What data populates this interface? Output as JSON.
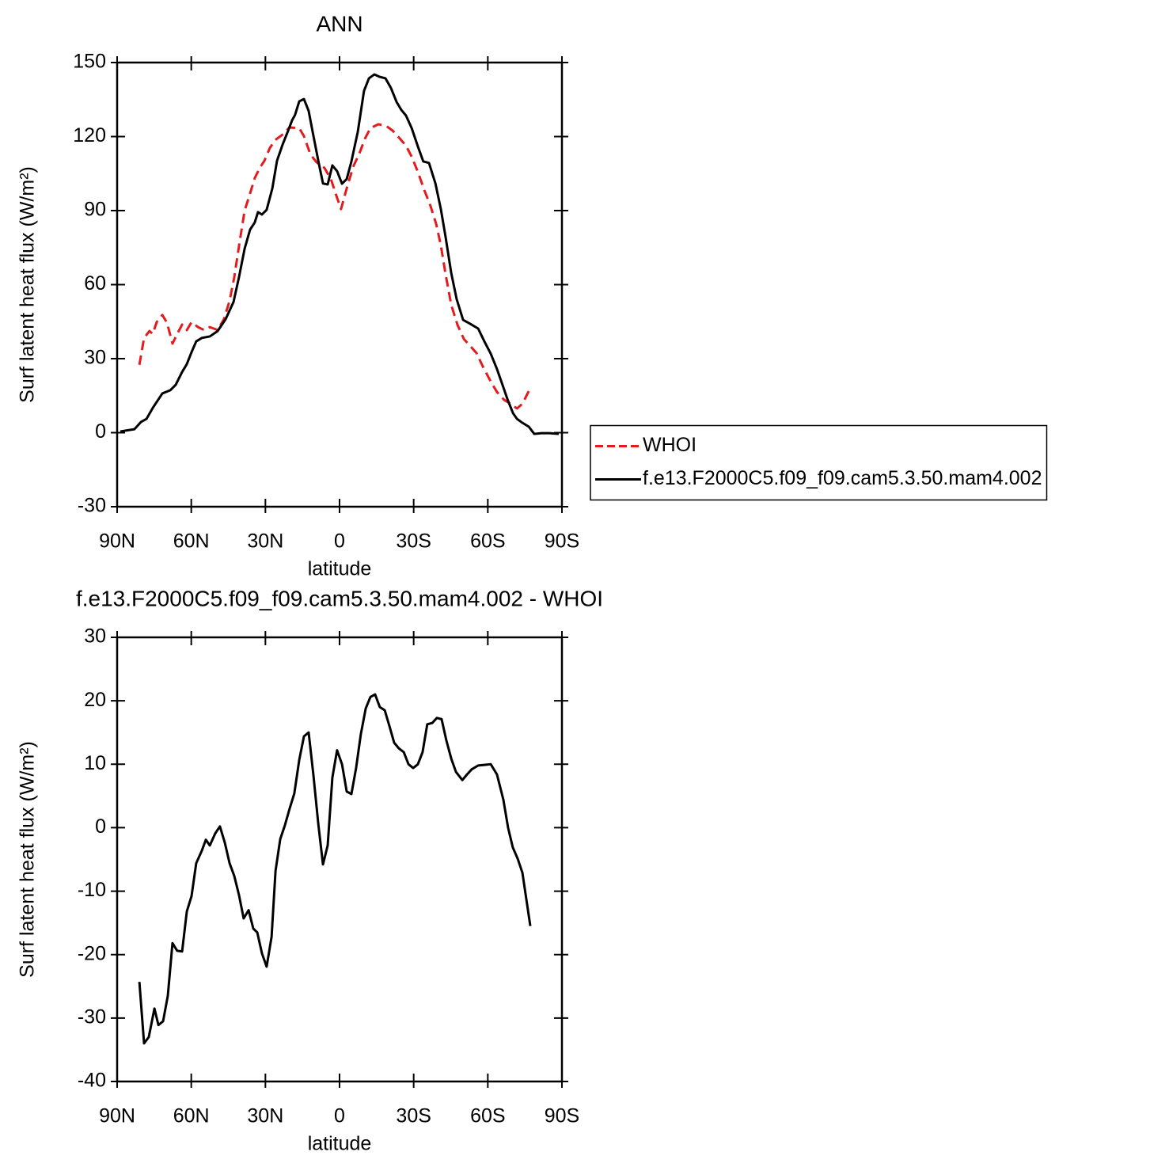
{
  "chart_data": [
    {
      "type": "line",
      "title": "ANN",
      "xlabel": "latitude",
      "ylabel": "Surf latent heat flux (W/m²)",
      "xlim": [
        90,
        -90
      ],
      "xticks": [
        {
          "value": 90,
          "label": "90N"
        },
        {
          "value": 60,
          "label": "60N"
        },
        {
          "value": 30,
          "label": "30N"
        },
        0,
        {
          "value": -30,
          "label": "30S"
        },
        {
          "value": -60,
          "label": "60S"
        },
        {
          "value": -90,
          "label": "90S"
        }
      ],
      "ylim": [
        -30,
        150
      ],
      "yticks": [
        -30,
        0,
        30,
        60,
        90,
        120,
        150
      ],
      "legend": "right",
      "series": [
        {
          "name": "WHOI",
          "color": "#e41a1c",
          "dash": true,
          "x": [
            81,
            79.1,
            76.9,
            75.6,
            74,
            71.7,
            69.8,
            67.6,
            65.7,
            63.7,
            61.8,
            59.9,
            57.3,
            54.8,
            52.5,
            49.3,
            46.8,
            44.5,
            42.6,
            40.4,
            38.4,
            36.2,
            34.3,
            32.3,
            30.4,
            28.2,
            26,
            23.1,
            20.2,
            16.3,
            14.4,
            11.8,
            9.3,
            6.1,
            3.5,
            1.3,
            -0.6,
            -2.9,
            -5.5,
            -8,
            -10.3,
            -12.5,
            -15.7,
            -18.9,
            -21.5,
            -24.4,
            -26.9,
            -29.2,
            -31.7,
            -34.3,
            -36.8,
            -39.1,
            -41,
            -42.9,
            -45.2,
            -47.7,
            -50.3,
            -52.9,
            -55.4,
            -58,
            -61.2,
            -63.7,
            -66.6,
            -69.2,
            -71.8,
            -74,
            -77.2
          ],
          "values": [
            27.5,
            38.4,
            41.2,
            40,
            44.8,
            47.7,
            44.5,
            36.1,
            40,
            43.8,
            41.6,
            44.8,
            42.8,
            41.6,
            42.8,
            41.6,
            46,
            53.4,
            63,
            77.5,
            90,
            97,
            103.2,
            107.3,
            110.2,
            115.4,
            118.6,
            120.8,
            123.7,
            123.4,
            120.2,
            112.8,
            109.6,
            107.3,
            102.8,
            96.1,
            90.6,
            99,
            107.7,
            113.1,
            119.2,
            123.4,
            125,
            124.3,
            122.4,
            119.2,
            116.3,
            111.8,
            105.7,
            98.3,
            91.9,
            84.6,
            75.9,
            64.3,
            51.8,
            43.8,
            38,
            35.1,
            32.3,
            26.8,
            20.7,
            16.5,
            13.3,
            11.7,
            9.8,
            11.7,
            18.1
          ]
        },
        {
          "name": "f.e13.F2000C5.f09_f09.cam5.3.50.mam4.002",
          "color": "#000000",
          "dash": false,
          "x": [
            88.7,
            83,
            80.4,
            78.1,
            75.6,
            71.7,
            68.5,
            66.3,
            63.7,
            61.8,
            59.9,
            58,
            55.7,
            52.5,
            49.3,
            46.1,
            42.9,
            40.7,
            38.4,
            36.2,
            34.3,
            33,
            31.4,
            29.5,
            27.2,
            25.3,
            23.1,
            20.8,
            19.2,
            18,
            16.3,
            14.4,
            12.5,
            10.9,
            8.6,
            6.7,
            4.8,
            2.9,
            1,
            -1,
            -2.9,
            -4.8,
            -7.4,
            -9.9,
            -11.9,
            -14.1,
            -16.3,
            -18.6,
            -20.8,
            -23.1,
            -25,
            -26.9,
            -29.2,
            -31.7,
            -33.9,
            -36.2,
            -38.8,
            -41,
            -42.9,
            -45.2,
            -47.4,
            -50,
            -52.9,
            -56.1,
            -58.6,
            -61.2,
            -63.7,
            -65.7,
            -67.9,
            -70.2,
            -71.8,
            -74,
            -76.6,
            -78.8,
            -81.7,
            -84.9,
            -88.7
          ],
          "values": [
            0.5,
            1.4,
            4.3,
            5.6,
            10,
            15.9,
            17.2,
            19.4,
            24.6,
            27.8,
            32.6,
            37,
            38.4,
            39,
            41.2,
            46,
            53,
            63,
            74.6,
            82.3,
            85.2,
            89.4,
            88.4,
            90.3,
            99,
            110.2,
            116.6,
            122.4,
            126.6,
            128.8,
            134.3,
            135.2,
            130.4,
            122,
            110.2,
            101,
            100.6,
            108.3,
            106,
            100.9,
            102.8,
            109.9,
            122,
            138.5,
            143.6,
            145.2,
            144.2,
            143.6,
            139.7,
            134,
            130.8,
            128.5,
            123.4,
            116,
            109.9,
            109.3,
            101,
            90.6,
            79.4,
            64.7,
            54.1,
            45.7,
            44.1,
            42.2,
            37,
            32,
            25.8,
            20.1,
            13.7,
            7.9,
            5.6,
            4,
            2.4,
            -0.5,
            -0.2,
            -0.2,
            -0.5
          ]
        }
      ]
    },
    {
      "type": "line",
      "title": "f.e13.F2000C5.f09_f09.cam5.3.50.mam4.002 - WHOI",
      "xlabel": "latitude",
      "ylabel": "Surf latent heat flux (W/m²)",
      "xlim": [
        90,
        -90
      ],
      "xticks": [
        {
          "value": 90,
          "label": "90N"
        },
        {
          "value": 60,
          "label": "60N"
        },
        {
          "value": 30,
          "label": "30N"
        },
        0,
        {
          "value": -30,
          "label": "30S"
        },
        {
          "value": -60,
          "label": "60S"
        },
        {
          "value": -90,
          "label": "90S"
        }
      ],
      "ylim": [
        -40,
        30
      ],
      "yticks": [
        -40,
        -30,
        -20,
        -10,
        0,
        10,
        20,
        30
      ],
      "series": [
        {
          "color": "#000000",
          "dash": false,
          "x": [
            81,
            79.1,
            77.2,
            74.9,
            73.3,
            71.4,
            69.5,
            67.6,
            65.7,
            63.7,
            61.8,
            59.9,
            58,
            55.7,
            54.1,
            52.5,
            50.3,
            48.4,
            46.4,
            44.5,
            42.6,
            40.7,
            38.8,
            36.8,
            34.9,
            33.3,
            31.4,
            29.5,
            27.5,
            25.9,
            24,
            22.1,
            20.2,
            18.3,
            16.3,
            14.4,
            12.5,
            10.6,
            8.6,
            6.7,
            4.8,
            2.9,
            1,
            -1,
            -2.9,
            -4.8,
            -6.7,
            -8.6,
            -10.6,
            -12.5,
            -14.4,
            -16.3,
            -18.3,
            -20.2,
            -22.1,
            -24,
            -26,
            -27.9,
            -29.8,
            -31.7,
            -33.6,
            -35.5,
            -37.5,
            -39.4,
            -41.3,
            -43.2,
            -45.2,
            -47.1,
            -49.7,
            -51.6,
            -53.5,
            -56.1,
            -58.6,
            -61.2,
            -63.7,
            -66.3,
            -68.2,
            -70.1,
            -72.1,
            -74,
            -77.2
          ],
          "values": [
            -24.3,
            -34,
            -33,
            -28.5,
            -31.1,
            -30.5,
            -26.5,
            -18.2,
            -19.4,
            -19.5,
            -13.2,
            -10.8,
            -5.6,
            -3.6,
            -1.9,
            -2.8,
            -0.9,
            0.2,
            -2.4,
            -5.6,
            -7.6,
            -10.6,
            -14.3,
            -13,
            -15.9,
            -16.5,
            -19.8,
            -21.9,
            -17.2,
            -6.8,
            -1.8,
            0.4,
            3,
            5.4,
            10.7,
            14.4,
            15,
            8.4,
            0.6,
            -5.8,
            -2.8,
            7.9,
            12.2,
            10,
            5.7,
            5.3,
            9.4,
            14.7,
            18.8,
            20.6,
            21,
            19,
            18.5,
            16,
            13.4,
            12.5,
            11.9,
            10,
            9.4,
            10,
            11.9,
            16.3,
            16.5,
            17.3,
            17.1,
            13.8,
            10.9,
            8.8,
            7.5,
            8.4,
            9.2,
            9.8,
            9.9,
            10,
            8.4,
            4.4,
            0,
            -3.1,
            -4.9,
            -7.1,
            -15.5
          ]
        }
      ]
    }
  ]
}
